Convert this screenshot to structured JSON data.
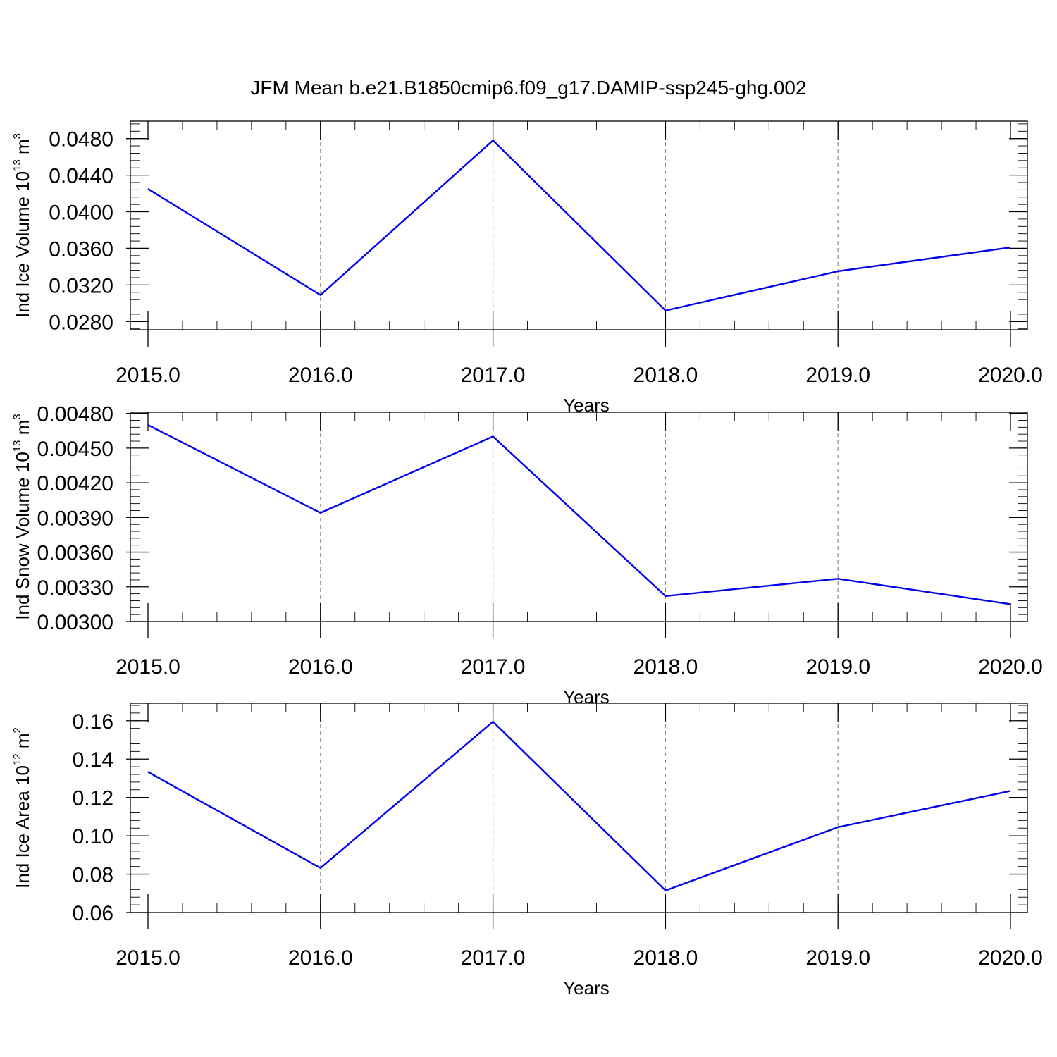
{
  "title": "JFM Mean b.e21.B1850cmip6.f09_g17.DAMIP-ssp245-ghg.002",
  "line_color": "#0000ee",
  "chart_data": [
    {
      "type": "line",
      "x": [
        2015,
        2016,
        2017,
        2018,
        2019,
        2020
      ],
      "series": [
        {
          "values": [
            0.0425,
            0.0309,
            0.0478,
            0.0292,
            0.0335,
            0.0361
          ]
        }
      ],
      "xlabel": "Years",
      "ylabel": {
        "text": "Ind Ice Volume 10",
        "sup": "13",
        "unit": " m",
        "unit_sup": "3"
      },
      "xlim": [
        2015,
        2020
      ],
      "ylim": [
        0.0271,
        0.0499
      ],
      "xticks": [
        2015,
        2016,
        2017,
        2018,
        2019,
        2020
      ],
      "xtick_labels": [
        "2015.0",
        "2016.0",
        "2017.0",
        "2018.0",
        "2019.0",
        "2020.0"
      ],
      "yticks": [
        0.028,
        0.032,
        0.036,
        0.04,
        0.044,
        0.048
      ],
      "ytick_labels": [
        "0.0280",
        "0.0320",
        "0.0360",
        "0.0400",
        "0.0440",
        "0.0480"
      ],
      "y_minor_step": 0.0008,
      "x_minor_step": 0.2,
      "grid": "x-dashed"
    },
    {
      "type": "line",
      "x": [
        2015,
        2016,
        2017,
        2018,
        2019,
        2020
      ],
      "series": [
        {
          "values": [
            0.0047,
            0.00394,
            0.0046,
            0.00322,
            0.00337,
            0.00315
          ]
        }
      ],
      "xlabel": "Years",
      "ylabel": {
        "text": "Ind Snow Volume 10",
        "sup": "13",
        "unit": " m",
        "unit_sup": "3"
      },
      "xlim": [
        2015,
        2020
      ],
      "ylim": [
        0.003,
        0.00481
      ],
      "xticks": [
        2015,
        2016,
        2017,
        2018,
        2019,
        2020
      ],
      "xtick_labels": [
        "2015.0",
        "2016.0",
        "2017.0",
        "2018.0",
        "2019.0",
        "2020.0"
      ],
      "yticks": [
        0.003,
        0.0033,
        0.0036,
        0.0039,
        0.0042,
        0.0045,
        0.0048
      ],
      "ytick_labels": [
        "0.00300",
        "0.00330",
        "0.00360",
        "0.00390",
        "0.00420",
        "0.00450",
        "0.00480"
      ],
      "y_minor_step": 6e-05,
      "x_minor_step": 0.2,
      "grid": "x-dashed"
    },
    {
      "type": "line",
      "x": [
        2015,
        2016,
        2017,
        2018,
        2019,
        2020
      ],
      "series": [
        {
          "values": [
            0.1333,
            0.0832,
            0.1595,
            0.0715,
            0.1045,
            0.1234
          ]
        }
      ],
      "xlabel": "Years",
      "ylabel": {
        "text": "Ind Ice Area 10",
        "sup": "12",
        "unit": " m",
        "unit_sup": "2"
      },
      "xlim": [
        2015,
        2020
      ],
      "ylim": [
        0.06,
        0.1691
      ],
      "xticks": [
        2015,
        2016,
        2017,
        2018,
        2019,
        2020
      ],
      "xtick_labels": [
        "2015.0",
        "2016.0",
        "2017.0",
        "2018.0",
        "2019.0",
        "2020.0"
      ],
      "yticks": [
        0.06,
        0.08,
        0.1,
        0.12,
        0.14,
        0.16
      ],
      "ytick_labels": [
        "0.06",
        "0.08",
        "0.10",
        "0.12",
        "0.14",
        "0.16"
      ],
      "y_minor_step": 0.004,
      "x_minor_step": 0.2,
      "grid": "x-dashed"
    }
  ]
}
